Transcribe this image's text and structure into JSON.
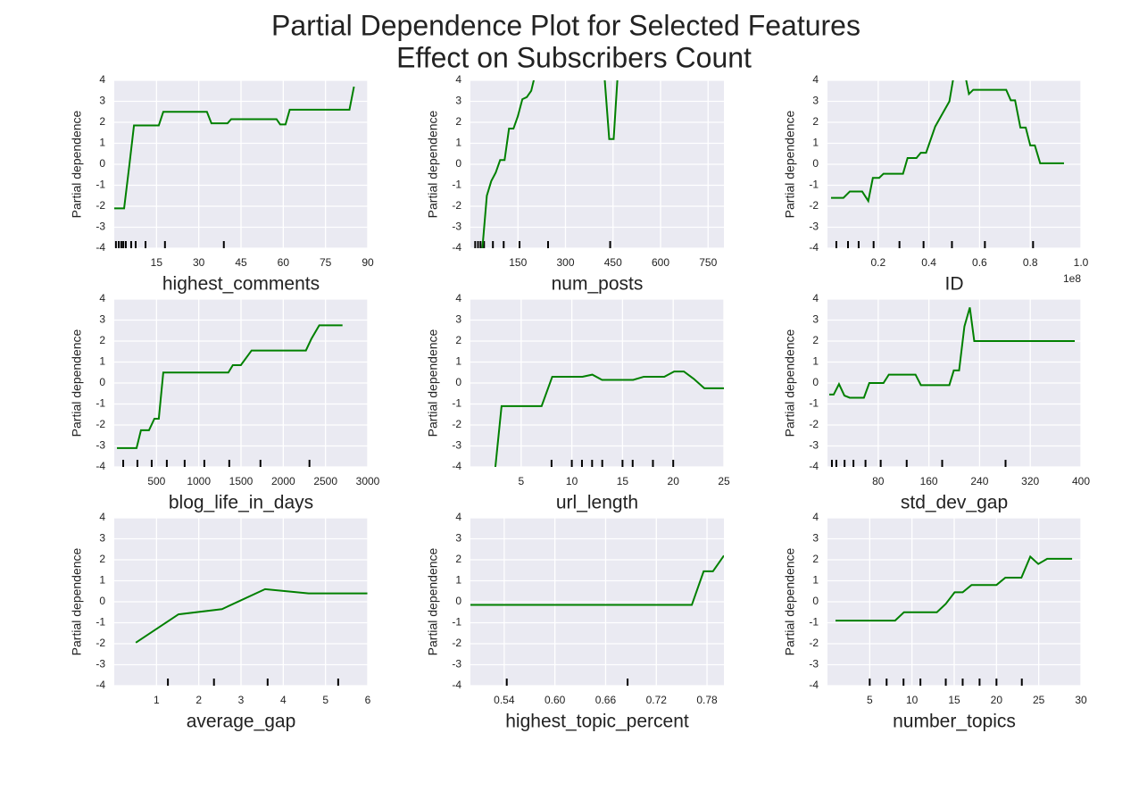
{
  "title": [
    "Partial Dependence Plot for Selected Features",
    "Effect on Subscribers Count"
  ],
  "chart_data": [
    {
      "type": "line",
      "xlabel": "highest_comments",
      "ylabel": "Partial dependence",
      "color": "#008000",
      "grid": true,
      "x": [
        0,
        3.5,
        5.4,
        7,
        15.8,
        17.4,
        32.9,
        34.5,
        40.2,
        41.5,
        57.6,
        58.9,
        60.8,
        62.3,
        83.5,
        85.1
      ],
      "values": [
        -2.1,
        -2.1,
        0,
        1.85,
        1.85,
        2.5,
        2.5,
        1.95,
        1.95,
        2.15,
        2.15,
        1.9,
        1.9,
        2.6,
        2.6,
        3.7
      ],
      "rug": [
        0.6,
        1.6,
        2.5,
        3.2,
        4.1,
        6,
        7.6,
        11.1,
        18,
        38.9
      ],
      "xlim": [
        0,
        90
      ],
      "xticks": [
        15,
        30,
        45,
        60,
        75,
        90
      ],
      "ylim": [
        -4,
        4
      ],
      "yticks": [
        -4,
        -3,
        -2,
        -1,
        0,
        1,
        2,
        3,
        4
      ]
    },
    {
      "type": "line",
      "xlabel": "num_posts",
      "ylabel": "Partial dependence",
      "color": "#008000",
      "grid": true,
      "x": [
        24,
        37.8,
        51.8,
        65.8,
        79.8,
        93.8,
        107.8,
        121.8,
        135.9,
        149.9,
        163.9,
        177.9,
        191.9,
        203,
        231,
        374,
        424,
        438,
        452,
        472
      ],
      "values": [
        -6,
        -4,
        -1.5,
        -0.8,
        -0.4,
        0.2,
        0.2,
        1.7,
        1.7,
        2.3,
        3.1,
        3.2,
        3.5,
        4.2,
        6,
        6,
        4,
        1.2,
        1.2,
        6
      ],
      "rug": [
        15,
        24,
        32,
        43,
        71,
        105,
        155,
        245,
        441
      ],
      "xlim": [
        0,
        800
      ],
      "xticks": [
        150,
        300,
        450,
        600,
        750
      ],
      "ylim": [
        -4,
        4
      ],
      "yticks": [
        -4,
        -3,
        -2,
        -1,
        0,
        1,
        2,
        3,
        4
      ]
    },
    {
      "type": "line",
      "xlabel": "ID",
      "ylabel": "Partial dependence",
      "color": "#008000",
      "grid": true,
      "x_offset_label": "1e8",
      "x": [
        0.014,
        0.063,
        0.088,
        0.137,
        0.161,
        0.179,
        0.204,
        0.221,
        0.298,
        0.316,
        0.351,
        0.368,
        0.389,
        0.425,
        0.481,
        0.502,
        0.53,
        0.544,
        0.558,
        0.575,
        0.705,
        0.723,
        0.74,
        0.761,
        0.782,
        0.8,
        0.818,
        0.839,
        0.933
      ],
      "values": [
        -1.6,
        -1.6,
        -1.3,
        -1.3,
        -1.75,
        -0.65,
        -0.65,
        -0.45,
        -0.45,
        0.3,
        0.3,
        0.55,
        0.55,
        1.8,
        3.0,
        4.5,
        5,
        4.2,
        3.35,
        3.55,
        3.55,
        3.05,
        3.05,
        1.75,
        1.75,
        0.9,
        0.9,
        0.05,
        0.05
      ],
      "rug": [
        0.035,
        0.081,
        0.123,
        0.182,
        0.284,
        0.379,
        0.491,
        0.621,
        0.811
      ],
      "xlim": [
        0,
        1.0
      ],
      "xticks": [
        0.2,
        0.4,
        0.6,
        0.8,
        {
          "value": 1.0,
          "label": "1.0"
        }
      ],
      "ylim": [
        -4,
        4
      ],
      "yticks": [
        -4,
        -3,
        -2,
        -1,
        0,
        1,
        2,
        3,
        4
      ]
    },
    {
      "type": "line",
      "xlabel": "blog_life_in_days",
      "ylabel": "Partial dependence",
      "color": "#008000",
      "grid": true,
      "x": [
        32,
        264,
        316,
        411,
        475,
        527,
        580,
        1350,
        1403,
        1498,
        1625,
        2268,
        2332,
        2426,
        2701
      ],
      "values": [
        -3.1,
        -3.1,
        -2.25,
        -2.25,
        -1.7,
        -1.7,
        0.5,
        0.5,
        0.85,
        0.85,
        1.55,
        1.55,
        2.1,
        2.75,
        2.75
      ],
      "rug": [
        106,
        274,
        443,
        622,
        833,
        1066,
        1361,
        1730,
        2310
      ],
      "xlim": [
        0,
        3000
      ],
      "xticks": [
        500,
        1000,
        1500,
        2000,
        2500,
        3000
      ],
      "ylim": [
        -4,
        4
      ],
      "yticks": [
        -4,
        -3,
        -2,
        -1,
        0,
        1,
        2,
        3,
        4
      ]
    },
    {
      "type": "line",
      "xlabel": "url_length",
      "ylabel": "Partial dependence",
      "color": "#008000",
      "grid": true,
      "x": [
        2.0,
        3.07,
        7.02,
        8.07,
        11.05,
        12.02,
        12.98,
        16.05,
        17.1,
        19.12,
        20.09,
        21.05,
        22.02,
        23.07,
        25
      ],
      "values": [
        -6.2,
        -1.1,
        -1.1,
        0.3,
        0.3,
        0.4,
        0.15,
        0.15,
        0.3,
        0.3,
        0.55,
        0.55,
        0.2,
        -0.25,
        -0.25
      ],
      "rug": [
        8,
        10,
        11,
        12,
        13,
        15,
        16,
        18,
        20
      ],
      "xlim": [
        0,
        25
      ],
      "xticks": [
        5,
        10,
        15,
        20,
        25
      ],
      "ylim": [
        -4,
        4
      ],
      "yticks": [
        -4,
        -3,
        -2,
        -1,
        0,
        1,
        2,
        3,
        4
      ]
    },
    {
      "type": "line",
      "xlabel": "std_dev_gap",
      "ylabel": "Partial dependence",
      "color": "#008000",
      "grid": true,
      "x": [
        2.8,
        9.8,
        18.2,
        26.7,
        35.1,
        57.5,
        66,
        88.4,
        96.8,
        138.9,
        147.4,
        192.3,
        199.3,
        207.7,
        216.1,
        224.6,
        231.6,
        390.2
      ],
      "values": [
        -0.55,
        -0.55,
        -0.05,
        -0.6,
        -0.7,
        -0.7,
        0.0,
        0.0,
        0.4,
        0.4,
        -0.1,
        -0.1,
        0.6,
        0.6,
        2.7,
        3.6,
        2.0,
        2.0
      ],
      "rug": [
        7,
        14,
        27,
        41,
        60,
        84,
        125,
        181,
        281
      ],
      "xlim": [
        0,
        400
      ],
      "xticks": [
        80,
        160,
        240,
        320,
        400
      ],
      "ylim": [
        -4,
        4
      ],
      "yticks": [
        -4,
        -3,
        -2,
        -1,
        0,
        1,
        2,
        3,
        4
      ]
    },
    {
      "type": "line",
      "xlabel": "average_gap",
      "ylabel": "Partial dependence",
      "color": "#008000",
      "grid": true,
      "x": [
        0.51,
        1.52,
        2.55,
        3.57,
        4.6,
        5.99
      ],
      "values": [
        -1.95,
        -0.6,
        -0.35,
        0.6,
        0.4,
        0.4
      ],
      "rug": [
        1.27,
        2.36,
        3.63,
        5.3
      ],
      "xlim": [
        0,
        6
      ],
      "xticks": [
        1,
        2,
        3,
        4,
        5,
        6
      ],
      "ylim": [
        -4,
        4
      ],
      "yticks": [
        -4,
        -3,
        -2,
        -1,
        0,
        1,
        2,
        3,
        4
      ]
    },
    {
      "type": "line",
      "xlabel": "highest_topic_percent",
      "ylabel": "Partial dependence",
      "color": "#008000",
      "grid": true,
      "x": [
        0.5,
        0.762,
        0.776,
        0.787,
        0.8
      ],
      "values": [
        -0.15,
        -0.15,
        1.45,
        1.45,
        2.2
      ],
      "rug": [
        0.543,
        0.686
      ],
      "xlim": [
        0.5,
        0.8
      ],
      "xticks": [
        0.54,
        {
          "value": 0.6,
          "label": "0.60"
        },
        0.66,
        0.72,
        0.78
      ],
      "ylim": [
        -4,
        4
      ],
      "yticks": [
        -4,
        -3,
        -2,
        -1,
        0,
        1,
        2,
        3,
        4
      ]
    },
    {
      "type": "line",
      "xlabel": "number_topics",
      "ylabel": "Partial dependence",
      "color": "#008000",
      "grid": true,
      "x": [
        0.95,
        8,
        9.05,
        12.95,
        14,
        15.05,
        16,
        17.05,
        20,
        21.05,
        22.95,
        24,
        24.95,
        26,
        28.95
      ],
      "values": [
        -0.9,
        -0.9,
        -0.5,
        -0.5,
        -0.1,
        0.45,
        0.45,
        0.8,
        0.8,
        1.15,
        1.15,
        2.15,
        1.8,
        2.05,
        2.05
      ],
      "rug": [
        5,
        7,
        9,
        11,
        14,
        16,
        18,
        20,
        23
      ],
      "xlim": [
        0,
        30
      ],
      "xticks": [
        5,
        10,
        15,
        20,
        25,
        30
      ],
      "ylim": [
        -4,
        4
      ],
      "yticks": [
        -4,
        -3,
        -2,
        -1,
        0,
        1,
        2,
        3,
        4
      ]
    }
  ]
}
